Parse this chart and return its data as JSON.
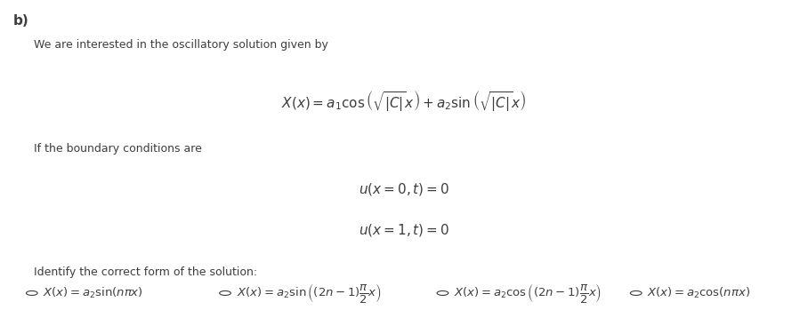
{
  "bg_color": "#ffffff",
  "label_b": "b)",
  "text_intro": "We are interested in the oscillatory solution given by",
  "formula_main": "$X(x) = a_1 \\cos\\left(\\sqrt{|C|}x\\right) + a_2 \\sin\\left(\\sqrt{|C|}x\\right)$",
  "text_bc": "If the boundary conditions are",
  "formula_bc1": "$u(x = 0, t) = 0$",
  "formula_bc2": "$u(x = 1, t) = 0$",
  "text_identify": "Identify the correct form of the solution:",
  "options": [
    "$X(x) = a_2 \\sin(n\\pi x)$",
    "$X(x) = a_2 \\sin\\left((2n-1)\\dfrac{\\pi}{2}x\\right)$",
    "$X(x) = a_2 \\cos\\left((2n-1)\\dfrac{\\pi}{2}x\\right)$",
    "$X(x) = a_2 \\cos(n\\pi x)$"
  ],
  "text_color": "#3d3d3d",
  "formula_color": "#3d3d3d",
  "font_size_label": 11,
  "font_size_text": 9,
  "font_size_formula": 11,
  "font_size_options": 9.5
}
